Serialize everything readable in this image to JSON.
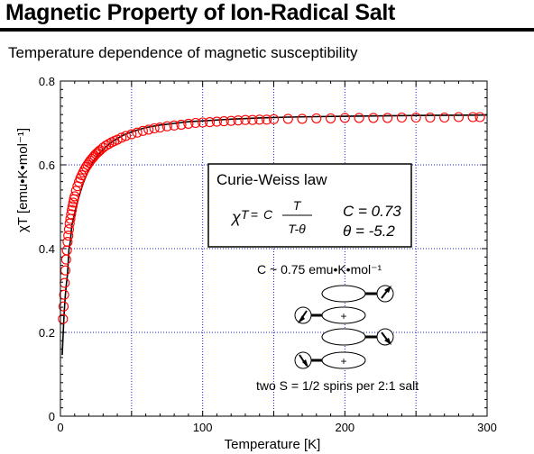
{
  "header": {
    "title": "Magnetic Property of Ion-Radical Salt",
    "subtitle": "Temperature dependence of magnetic susceptibility"
  },
  "chart_data": {
    "type": "scatter",
    "xlabel": "Temperature [K]",
    "ylabel": "χT [emu•K•mol⁻¹]",
    "xlim": [
      0,
      300
    ],
    "ylim": [
      0,
      0.8
    ],
    "xticks": [
      "0",
      "100",
      "200",
      "300"
    ],
    "yticks": [
      "0",
      "0.2",
      "0.4",
      "0.6",
      "0.8"
    ],
    "grid": true,
    "marker_color": "#ff0000",
    "fit_color": "#000000",
    "grid_color": "#1c1ccc",
    "series": [
      {
        "style": "open-circles",
        "x": [
          1.8,
          2.2,
          2.6,
          3,
          3.5,
          4,
          4.5,
          5,
          5.5,
          6,
          6.5,
          7,
          7.5,
          8,
          8.5,
          9,
          9.5,
          10,
          11,
          12,
          13,
          14,
          15,
          16,
          17,
          18,
          19,
          20,
          21,
          22,
          23,
          24,
          25,
          26,
          27,
          28,
          30,
          32,
          34,
          36,
          38,
          40,
          43,
          46,
          50,
          54,
          58,
          62,
          66,
          70,
          75,
          80,
          85,
          90,
          95,
          100,
          105,
          110,
          115,
          120,
          125,
          130,
          135,
          140,
          145,
          150,
          160,
          170,
          180,
          190,
          200,
          210,
          220,
          230,
          240,
          250,
          260,
          270,
          280,
          290,
          295
        ],
        "y": [
          0.232,
          0.262,
          0.29,
          0.318,
          0.348,
          0.374,
          0.396,
          0.416,
          0.431,
          0.446,
          0.46,
          0.471,
          0.482,
          0.492,
          0.501,
          0.51,
          0.518,
          0.525,
          0.538,
          0.549,
          0.559,
          0.568,
          0.575,
          0.582,
          0.589,
          0.595,
          0.6,
          0.605,
          0.61,
          0.614,
          0.618,
          0.622,
          0.626,
          0.629,
          0.632,
          0.635,
          0.641,
          0.646,
          0.65,
          0.654,
          0.657,
          0.66,
          0.665,
          0.669,
          0.673,
          0.677,
          0.681,
          0.684,
          0.687,
          0.689,
          0.692,
          0.694,
          0.696,
          0.698,
          0.7,
          0.701,
          0.702,
          0.703,
          0.704,
          0.705,
          0.706,
          0.707,
          0.707,
          0.708,
          0.708,
          0.709,
          0.71,
          0.71,
          0.711,
          0.711,
          0.712,
          0.712,
          0.712,
          0.712,
          0.713,
          0.713,
          0.713,
          0.713,
          0.714,
          0.714,
          0.714
        ]
      },
      {
        "style": "fit-line",
        "x": [
          1.3,
          1.6,
          2,
          2.5,
          3,
          3.5,
          4,
          5,
          6,
          7,
          8,
          9,
          10,
          12,
          14,
          16,
          18,
          20,
          23,
          26,
          30,
          35,
          40,
          45,
          50,
          60,
          70,
          80,
          90,
          100,
          120,
          140,
          160,
          180,
          200,
          230,
          260,
          300
        ],
        "y": [
          0.146,
          0.172,
          0.204,
          0.237,
          0.266,
          0.29,
          0.31,
          0.34,
          0.4,
          0.417,
          0.455,
          0.47,
          0.485,
          0.512,
          0.535,
          0.556,
          0.573,
          0.589,
          0.608,
          0.622,
          0.637,
          0.652,
          0.663,
          0.672,
          0.679,
          0.689,
          0.695,
          0.699,
          0.703,
          0.705,
          0.709,
          0.712,
          0.714,
          0.715,
          0.716,
          0.717,
          0.718,
          0.719
        ]
      }
    ],
    "annotations": {
      "box_title": "Curie-Weiss law",
      "formula_chi": "χ",
      "formula_T": "T",
      "formula_eq": "=",
      "formula_C": "C",
      "formula_num": "T",
      "formula_den": "T-θ",
      "param_C": "C = 0.73",
      "param_theta": "θ = -5.2",
      "c_value": "C ~ 0.75 emu•K•mol⁻¹",
      "plus": "+",
      "spins_note": "two S = 1/2 spins per 2:1 salt"
    }
  }
}
